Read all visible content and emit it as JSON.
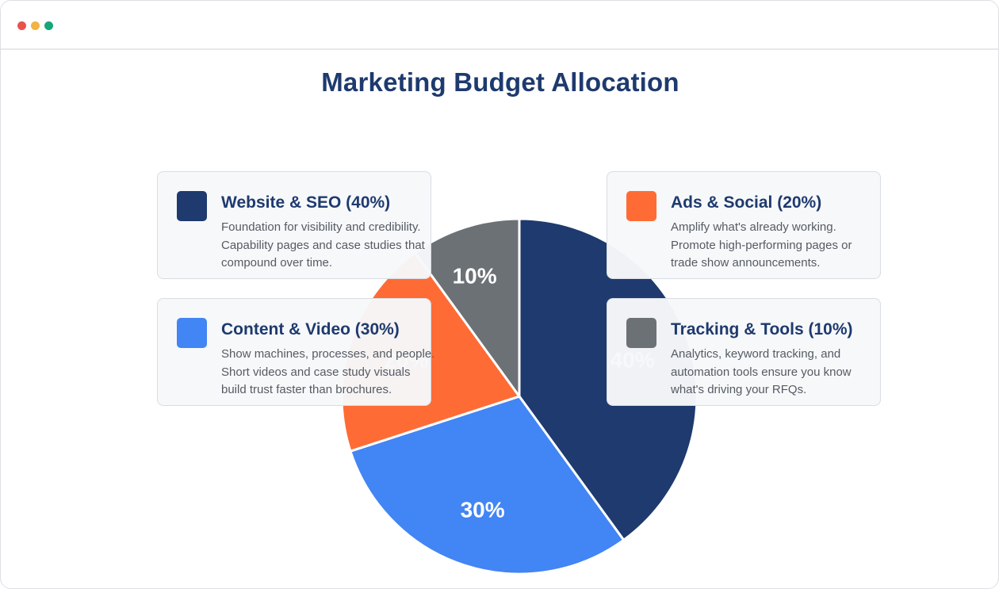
{
  "page": {
    "title": "Marketing Budget Allocation"
  },
  "window": {
    "controls": [
      "close-dot",
      "minimize-dot",
      "maximize-dot"
    ]
  },
  "chart_data": {
    "type": "pie",
    "title": "Marketing Budget Allocation",
    "slices": [
      {
        "name": "Website & SEO",
        "value": 40,
        "label": "40%",
        "color": "#1e3a6e"
      },
      {
        "name": "Content & Video",
        "value": 30,
        "label": "30%",
        "color": "#4285f4"
      },
      {
        "name": "Ads & Social",
        "value": 20,
        "label": "20%",
        "color": "#ff6b35"
      },
      {
        "name": "Tracking & Tools",
        "value": 10,
        "label": "10%",
        "color": "#6c7176"
      }
    ]
  },
  "legend_cards": {
    "website": {
      "title": "Website & SEO (40%)",
      "color": "#1e3a6e",
      "lines": [
        "Foundation for visibility and credibility.",
        "Capability pages and case studies that",
        "compound over time."
      ]
    },
    "ads": {
      "title": "Ads & Social (20%)",
      "color": "#ff6b35",
      "lines": [
        "Amplify what's already working.",
        "Promote high-performing pages or",
        "trade show announcements."
      ]
    },
    "content": {
      "title": "Content & Video (30%)",
      "color": "#4285f4",
      "lines": [
        "Show machines, processes, and people.",
        "Short videos and case study visuals",
        "build trust faster than brochures."
      ]
    },
    "tracking": {
      "title": "Tracking & Tools (10%)",
      "color": "#6c7176",
      "lines": [
        "Analytics, keyword tracking, and",
        "automation tools ensure you know",
        "what's driving your RFQs."
      ]
    }
  }
}
